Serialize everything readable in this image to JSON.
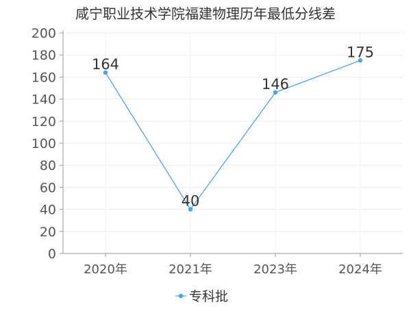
{
  "chart_data": {
    "type": "line",
    "title": "咸宁职业技术学院福建物理历年最低分线差",
    "categories": [
      "2020年",
      "2021年",
      "2023年",
      "2024年"
    ],
    "series": [
      {
        "name": "专科批",
        "values": [
          164,
          40,
          146,
          175
        ],
        "color": "#4da3f0"
      }
    ],
    "ylim": [
      0,
      200
    ],
    "yticks": [
      0,
      20,
      40,
      60,
      80,
      100,
      120,
      140,
      160,
      180,
      200
    ],
    "grid": true,
    "legend": "bottom-center"
  }
}
